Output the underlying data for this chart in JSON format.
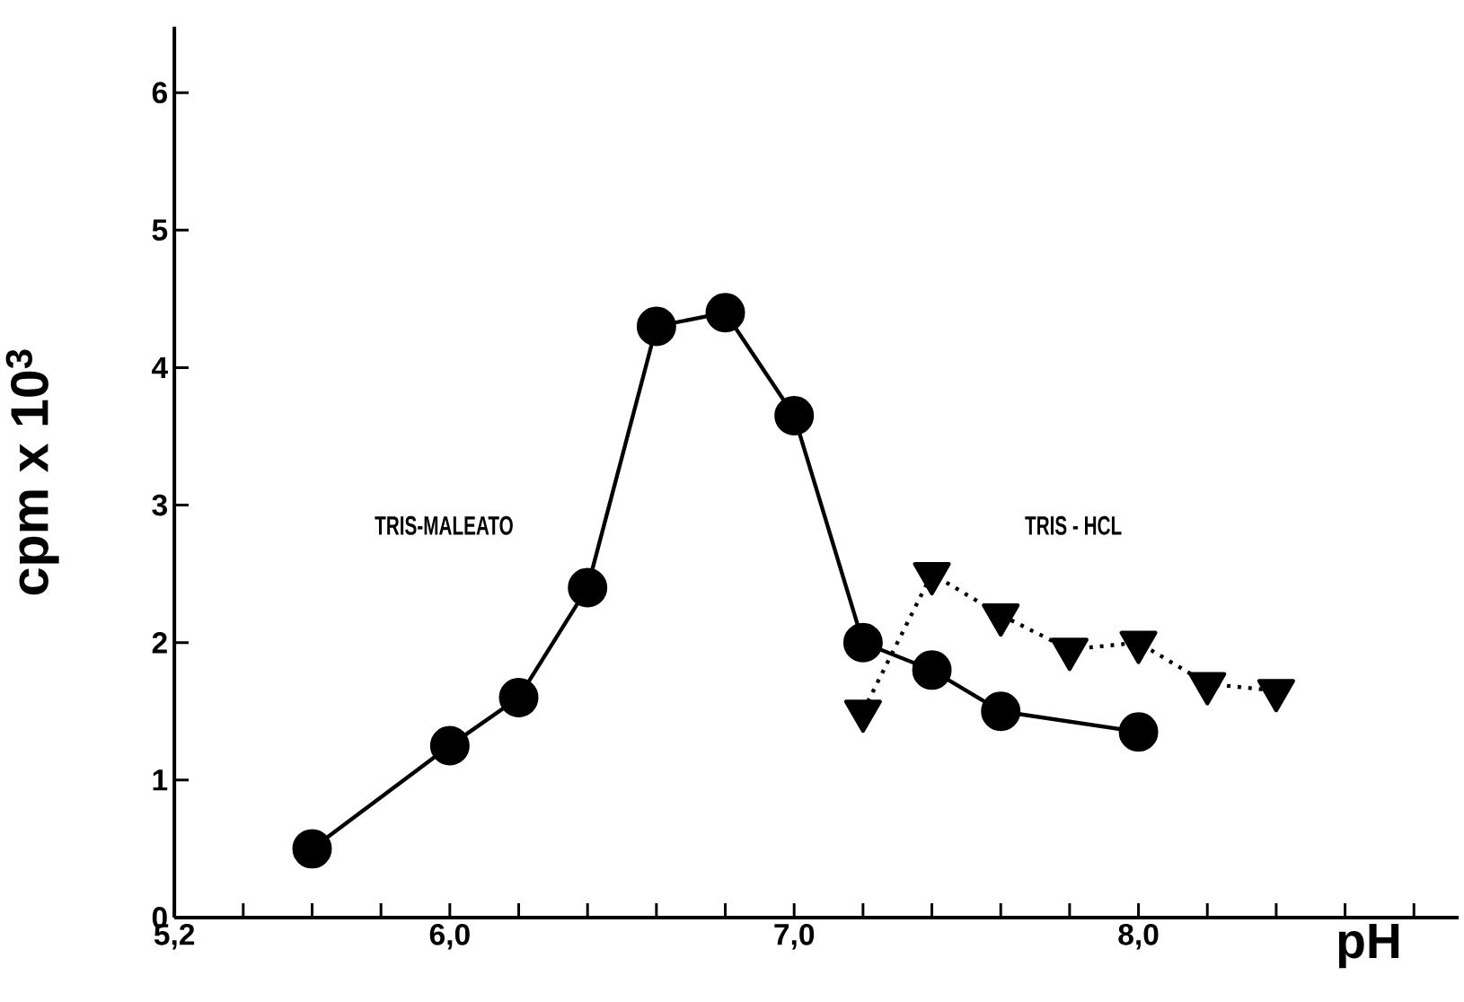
{
  "chart_data": {
    "type": "line",
    "xlabel": "pH",
    "ylabel": "cpm x 10$^{3}$",
    "xlim": [
      5.2,
      8.93
    ],
    "ylim": [
      0,
      6.48
    ],
    "xticks": [
      {
        "value": 5.2,
        "label": "5,2"
      },
      {
        "value": 5.4,
        "label": null
      },
      {
        "value": 5.6,
        "label": null
      },
      {
        "value": 5.8,
        "label": null
      },
      {
        "value": 6.0,
        "label": "6,0"
      },
      {
        "value": 6.2,
        "label": null
      },
      {
        "value": 6.4,
        "label": null
      },
      {
        "value": 6.6,
        "label": null
      },
      {
        "value": 6.8,
        "label": null
      },
      {
        "value": 7.0,
        "label": "7,0"
      },
      {
        "value": 7.2,
        "label": null
      },
      {
        "value": 7.4,
        "label": null
      },
      {
        "value": 7.6,
        "label": null
      },
      {
        "value": 7.8,
        "label": null
      },
      {
        "value": 8.0,
        "label": "8,0"
      },
      {
        "value": 8.2,
        "label": null
      },
      {
        "value": 8.4,
        "label": null
      },
      {
        "value": 8.6,
        "label": null
      },
      {
        "value": 8.8,
        "label": null
      }
    ],
    "yticks": [
      0,
      1,
      2,
      3,
      4,
      5,
      6
    ],
    "grid": false,
    "series": [
      {
        "name": "TRIS-MALEATO",
        "color": "#000000",
        "marker": "circle",
        "line_style": "solid",
        "x": [
          5.6,
          6.0,
          6.2,
          6.4,
          6.6,
          6.8,
          7.0,
          7.2,
          7.4,
          7.6,
          8.0
        ],
        "values": [
          0.5,
          1.25,
          1.6,
          2.4,
          4.3,
          4.4,
          3.65,
          2.0,
          1.8,
          1.5,
          1.35
        ]
      },
      {
        "name": "TRIS - HCL",
        "color": "#000000",
        "marker": "triangle",
        "line_style": "dotted",
        "x": [
          7.2,
          7.4,
          7.6,
          7.8,
          8.0,
          8.2,
          8.4
        ],
        "values": [
          1.5,
          2.5,
          2.2,
          1.95,
          2.0,
          1.7,
          1.65
        ]
      }
    ]
  }
}
